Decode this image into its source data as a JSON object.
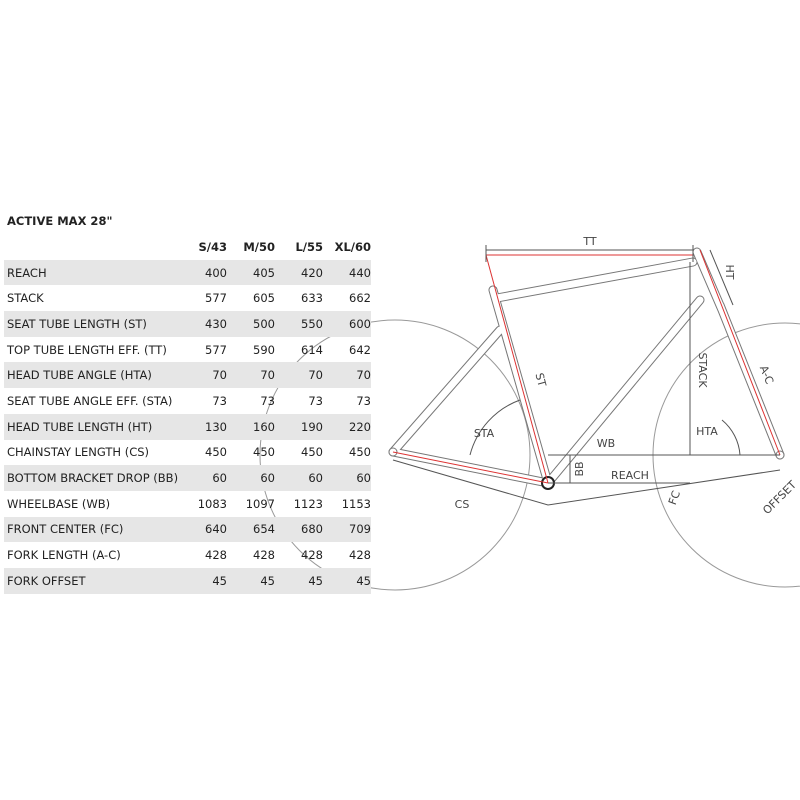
{
  "table": {
    "title": "ACTIVE MAX 28\"",
    "columns": [
      "S/43",
      "M/50",
      "L/55",
      "XL/60"
    ],
    "rows": [
      [
        "REACH",
        400,
        405,
        420,
        440
      ],
      [
        "STACK",
        577,
        605,
        633,
        662
      ],
      [
        "SEAT TUBE LENGTH (ST)",
        430,
        500,
        550,
        600
      ],
      [
        "TOP TUBE LENGTH EFF. (TT)",
        577,
        590,
        614,
        642
      ],
      [
        "HEAD TUBE ANGLE (HTA)",
        70,
        70,
        70,
        70
      ],
      [
        "SEAT TUBE ANGLE EFF. (STA)",
        73,
        73,
        73,
        73
      ],
      [
        "HEAD TUBE LENGTH (HT)",
        130,
        160,
        190,
        220
      ],
      [
        "CHAINSTAY LENGTH (CS)",
        450,
        450,
        450,
        450
      ],
      [
        "BOTTOM BRACKET DROP (BB)",
        60,
        60,
        60,
        60
      ],
      [
        "WHEELBASE (WB)",
        1083,
        1097,
        1123,
        1153
      ],
      [
        "FRONT CENTER (FC)",
        640,
        654,
        680,
        709
      ],
      [
        "FORK LENGTH (A-C)",
        428,
        428,
        428,
        428
      ],
      [
        "FORK OFFSET",
        45,
        45,
        45,
        45
      ]
    ]
  },
  "diagram": {
    "labels": {
      "tt": "TT",
      "ht": "HT",
      "st": "ST",
      "stack": "STACK",
      "ac": "A-C",
      "sta": "STA",
      "hta": "HTA",
      "wb": "WB",
      "bb": "BB",
      "reach": "REACH",
      "cs": "CS",
      "fc": "FC",
      "offset": "OFFSET"
    }
  }
}
